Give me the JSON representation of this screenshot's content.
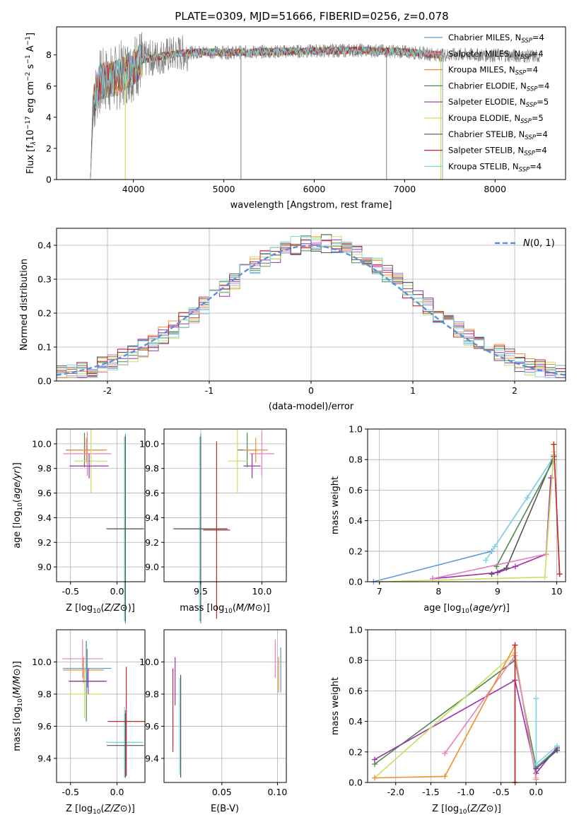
{
  "title": "PLATE=0309, MJD=51666, FIBERID=0256, z=0.078",
  "colors": {
    "Chabrier MILES": "#5b9bd5",
    "Salpeter MILES": "#e87fc0",
    "Kroupa MILES": "#f28e2b",
    "Chabrier ELODIE": "#4e8a4e",
    "Salpeter ELODIE": "#9b2fae",
    "Kroupa ELODIE": "#c8e05c",
    "Chabrier STELIB": "#555555",
    "Salpeter STELIB": "#c0282e",
    "Kroupa STELIB": "#7fd8e0",
    "data": "#808080",
    "normal": "#5b8fd9"
  },
  "chart_data": [
    {
      "id": "spectrum",
      "type": "line",
      "xlabel": "wavelength [Angstrom, rest frame]",
      "ylabel": "Flux [f_λ 10^-17 erg cm^-2 s^-1 A^-1]",
      "xlim": [
        3150,
        8780
      ],
      "ylim": [
        0,
        9.8
      ],
      "xticks": [
        4000,
        5000,
        6000,
        7000,
        8000
      ],
      "yticks": [
        0,
        2,
        4,
        6,
        8
      ],
      "legend": [
        {
          "base": "Chabrier MILES, N",
          "sub": "SSP",
          "tail": "=4",
          "model": "Chabrier MILES"
        },
        {
          "base": "Salpeter MILES, N",
          "sub": "SSP",
          "tail": "=4",
          "model": "Salpeter MILES"
        },
        {
          "base": "Kroupa MILES, N",
          "sub": "SSP",
          "tail": "=4",
          "model": "Kroupa MILES"
        },
        {
          "base": "Chabrier ELODIE, N",
          "sub": "SSP",
          "tail": "=4",
          "model": "Chabrier ELODIE"
        },
        {
          "base": "Salpeter ELODIE, N",
          "sub": "SSP",
          "tail": "=5",
          "model": "Salpeter ELODIE"
        },
        {
          "base": "Kroupa ELODIE, N",
          "sub": "SSP",
          "tail": "=5",
          "model": "Kroupa ELODIE"
        },
        {
          "base": "Chabrier STELIB, N",
          "sub": "SSP",
          "tail": "=4",
          "model": "Chabrier STELIB"
        },
        {
          "base": "Salpeter STELIB, N",
          "sub": "SSP",
          "tail": "=4",
          "model": "Salpeter STELIB"
        },
        {
          "base": "Kroupa STELIB, N",
          "sub": "SSP",
          "tail": "=4",
          "model": "Kroupa STELIB"
        }
      ],
      "continuum": {
        "x": [
          3560,
          3620,
          3700,
          3800,
          3900,
          4000,
          4100,
          4300,
          4500,
          4800,
          5000,
          5500,
          6000,
          6500,
          7000,
          7400,
          7800,
          8200,
          8500
        ],
        "y": [
          4.9,
          6.2,
          6.4,
          6.5,
          6.9,
          7.2,
          7.7,
          7.9,
          8.1,
          8.2,
          8.15,
          8.2,
          8.25,
          8.3,
          8.2,
          8.0,
          8.0,
          7.95,
          7.9
        ]
      },
      "data_xrange": [
        3560,
        8500
      ],
      "model_xrange": [
        3525,
        7420
      ]
    },
    {
      "id": "residuals",
      "type": "bar",
      "xlabel": "(data-model)/error",
      "ylabel": "Normed distribution",
      "xlim": [
        -2.5,
        2.5
      ],
      "ylim": [
        0,
        0.45
      ],
      "xticks": [
        -2,
        -1,
        0,
        1,
        2
      ],
      "yticks": [
        0.0,
        0.1,
        0.2,
        0.3,
        0.4
      ],
      "legend": "N(0,1)",
      "bin_width": 0.1
    },
    {
      "id": "age_vs_Z",
      "type": "scatter",
      "xlabel": "Z [log10(Z/Z⊙)]",
      "ylabel": "age [log10(age/yr)]",
      "xlim": [
        -0.65,
        0.3
      ],
      "ylim": [
        8.88,
        10.12
      ],
      "xticks": [
        -0.5,
        0.0
      ],
      "yticks": [
        9.0,
        9.2,
        9.4,
        9.6,
        9.8,
        10.0
      ],
      "crosses": [
        {
          "model": "Chabrier MILES",
          "x": 0.09,
          "y": 9.31,
          "xerr": 0.17,
          "yerr": 0.77
        },
        {
          "model": "Kroupa STELIB",
          "x": 0.08,
          "y": 9.31,
          "xerr": 0.2,
          "yerr": 0.75
        },
        {
          "model": "Chabrier STELIB",
          "x": 0.09,
          "y": 9.31,
          "xerr": 0.2,
          "yerr": 0.75
        },
        {
          "model": "Chabrier ELODIE",
          "x": -0.35,
          "y": 9.95,
          "xerr": 0.2,
          "yerr": 0.14
        },
        {
          "model": "Salpeter MILES",
          "x": -0.32,
          "y": 9.92,
          "xerr": 0.26,
          "yerr": 0.18
        },
        {
          "model": "Kroupa MILES",
          "x": -0.33,
          "y": 9.95,
          "xerr": 0.22,
          "yerr": 0.1
        },
        {
          "model": "Kroupa ELODIE",
          "x": -0.28,
          "y": 9.86,
          "xerr": 0.18,
          "yerr": 0.26
        },
        {
          "model": "Salpeter ELODIE",
          "x": -0.3,
          "y": 9.82,
          "xerr": 0.21,
          "yerr": 0.1
        }
      ]
    },
    {
      "id": "age_vs_mass",
      "type": "scatter",
      "xlabel": "mass [log10(M/M⊙)]",
      "ylabel": "",
      "xlim": [
        9.2,
        10.2
      ],
      "ylim": [
        8.88,
        10.12
      ],
      "xticks": [
        9.5,
        10.0
      ],
      "yticks": [
        9.0,
        9.2,
        9.4,
        9.6,
        9.8,
        10.0
      ],
      "crosses": [
        {
          "model": "Chabrier MILES",
          "x": 9.5,
          "y": 9.31,
          "xerr": 0.2,
          "yerr": 0.77
        },
        {
          "model": "Kroupa STELIB",
          "x": 9.49,
          "y": 9.31,
          "xerr": 0.22,
          "yerr": 0.75
        },
        {
          "model": "Chabrier STELIB",
          "x": 9.5,
          "y": 9.31,
          "xerr": 0.22,
          "yerr": 0.75
        },
        {
          "model": "Salpeter STELIB",
          "x": 9.63,
          "y": 9.3,
          "xerr": 0.11,
          "yerr": 0.72
        },
        {
          "model": "Chabrier ELODIE",
          "x": 9.88,
          "y": 9.95,
          "xerr": 0.08,
          "yerr": 0.14
        },
        {
          "model": "Salpeter MILES",
          "x": 10.0,
          "y": 9.92,
          "xerr": 0.1,
          "yerr": 0.18
        },
        {
          "model": "Kroupa MILES",
          "x": 9.95,
          "y": 9.95,
          "xerr": 0.1,
          "yerr": 0.1
        },
        {
          "model": "Kroupa ELODIE",
          "x": 9.8,
          "y": 9.86,
          "xerr": 0.08,
          "yerr": 0.26
        },
        {
          "model": "Salpeter ELODIE",
          "x": 9.92,
          "y": 9.82,
          "xerr": 0.07,
          "yerr": 0.1
        }
      ]
    },
    {
      "id": "massweight_vs_age",
      "type": "line",
      "xlabel": "age [log10(age/yr)]",
      "ylabel": "mass weight",
      "xlim": [
        6.8,
        10.15
      ],
      "ylim": [
        0,
        1.0
      ],
      "xticks": [
        7,
        8,
        9,
        10
      ],
      "yticks": [
        0.0,
        0.2,
        0.4,
        0.6,
        0.8,
        1.0
      ],
      "series": [
        {
          "model": "Chabrier MILES",
          "x": [
            6.9,
            8.9,
            9.5,
            9.95
          ],
          "y": [
            0.0,
            0.2,
            0.55,
            0.82
          ]
        },
        {
          "model": "Kroupa STELIB",
          "x": [
            8.8,
            8.95,
            9.5,
            9.95
          ],
          "y": [
            0.14,
            0.23,
            0.55,
            0.82
          ]
        },
        {
          "model": "Chabrier STELIB",
          "x": [
            8.9,
            9.15,
            9.95
          ],
          "y": [
            0.05,
            0.09,
            0.82
          ]
        },
        {
          "model": "Chabrier ELODIE",
          "x": [
            8.98,
            9.95
          ],
          "y": [
            0.1,
            0.8
          ]
        },
        {
          "model": "Salpeter ELODIE",
          "x": [
            7.9,
            9.0,
            9.3,
            9.82,
            9.9
          ],
          "y": [
            0.02,
            0.06,
            0.1,
            0.18,
            0.68
          ]
        },
        {
          "model": "Salpeter MILES",
          "x": [
            7.9,
            9.82,
            9.95
          ],
          "y": [
            0.02,
            0.18,
            0.83
          ]
        },
        {
          "model": "Kroupa ELODIE",
          "x": [
            7.0,
            9.8,
            9.95
          ],
          "y": [
            0.0,
            0.03,
            0.85
          ]
        },
        {
          "model": "Kroupa MILES",
          "x": [
            9.95,
            10.05
          ],
          "y": [
            0.9,
            0.05
          ]
        },
        {
          "model": "Salpeter STELIB",
          "x": [
            9.95,
            10.05
          ],
          "y": [
            0.9,
            0.05
          ]
        }
      ]
    },
    {
      "id": "mass_vs_Z",
      "type": "scatter",
      "xlabel": "Z [log10(Z/Z⊙)]",
      "ylabel": "mass [log10(M/M⊙)]",
      "xlim": [
        -0.65,
        0.3
      ],
      "ylim": [
        9.25,
        10.2
      ],
      "xticks": [
        -0.5,
        0.0
      ],
      "yticks": [
        9.4,
        9.6,
        9.8,
        10.0
      ],
      "crosses": [
        {
          "model": "Chabrier MILES",
          "x": 0.09,
          "y": 9.5,
          "xerr": 0.17,
          "yerr": 0.2
        },
        {
          "model": "Kroupa STELIB",
          "x": 0.08,
          "y": 9.5,
          "xerr": 0.2,
          "yerr": 0.22
        },
        {
          "model": "Chabrier STELIB",
          "x": 0.09,
          "y": 9.48,
          "xerr": 0.2,
          "yerr": 0.2
        },
        {
          "model": "Salpeter STELIB",
          "x": 0.1,
          "y": 9.63,
          "xerr": 0.2,
          "yerr": 0.34
        },
        {
          "model": "Chabrier ELODIE",
          "x": -0.33,
          "y": 9.88,
          "xerr": 0.19,
          "yerr": 0.25
        },
        {
          "model": "Salpeter MILES",
          "x": -0.37,
          "y": 10.02,
          "xerr": 0.22,
          "yerr": 0.12
        },
        {
          "model": "Kroupa MILES",
          "x": -0.36,
          "y": 9.95,
          "xerr": 0.22,
          "yerr": 0.08
        },
        {
          "model": "Chabrier MILES",
          "x": -0.32,
          "y": 9.96,
          "xerr": 0.26,
          "yerr": 0.12
        },
        {
          "model": "Kroupa ELODIE",
          "x": -0.35,
          "y": 9.8,
          "xerr": 0.18,
          "yerr": 0.15
        },
        {
          "model": "Salpeter ELODIE",
          "x": -0.31,
          "y": 9.88,
          "xerr": 0.2,
          "yerr": 0.08
        }
      ]
    },
    {
      "id": "mass_vs_ebv",
      "type": "scatter",
      "xlabel": "E(B-V)",
      "ylabel": "",
      "xlim": [
        -0.002,
        0.108
      ],
      "ylim": [
        9.25,
        10.2
      ],
      "xticks": [
        0.05,
        0.1
      ],
      "yticks": [
        9.4,
        9.6,
        9.8,
        10.0
      ],
      "crosses": [
        {
          "model": "Salpeter STELIB",
          "x": 0.006,
          "y": 9.7,
          "xerr": 0.0,
          "yerr": 0.26
        },
        {
          "model": "Salpeter ELODIE",
          "x": 0.008,
          "y": 9.88,
          "xerr": 0.0,
          "yerr": 0.15
        },
        {
          "model": "Kroupa STELIB",
          "x": 0.012,
          "y": 9.6,
          "xerr": 0.0,
          "yerr": 0.3
        },
        {
          "model": "Chabrier STELIB",
          "x": 0.013,
          "y": 9.6,
          "xerr": 0.0,
          "yerr": 0.32
        },
        {
          "model": "Salpeter MILES",
          "x": 0.098,
          "y": 10.02,
          "xerr": 0.0,
          "yerr": 0.12
        },
        {
          "model": "Kroupa MILES",
          "x": 0.101,
          "y": 9.92,
          "xerr": 0.0,
          "yerr": 0.11
        },
        {
          "model": "Chabrier MILES",
          "x": 0.103,
          "y": 9.95,
          "xerr": 0.0,
          "yerr": 0.14
        }
      ]
    },
    {
      "id": "massweight_vs_Z",
      "type": "line",
      "xlabel": "Z [log10(Z/Z⊙)]",
      "ylabel": "mass weight",
      "xlim": [
        -2.4,
        0.42
      ],
      "ylim": [
        0,
        1.0
      ],
      "xticks": [
        -2.0,
        -1.5,
        -1.0,
        -0.5,
        0.0
      ],
      "yticks": [
        0.0,
        0.2,
        0.4,
        0.6,
        0.8,
        1.0
      ],
      "series": [
        {
          "model": "Chabrier ELODIE",
          "x": [
            -2.3,
            -0.3,
            0.0,
            0.3
          ],
          "y": [
            0.12,
            0.8,
            0.1,
            0.22
          ]
        },
        {
          "model": "Salpeter ELODIE",
          "x": [
            -2.3,
            -0.3,
            0.0,
            0.3
          ],
          "y": [
            0.15,
            0.67,
            0.06,
            0.23
          ]
        },
        {
          "model": "Kroupa ELODIE",
          "x": [
            -2.3,
            -0.3,
            0.0
          ],
          "y": [
            0.03,
            0.85,
            0.03
          ]
        },
        {
          "model": "Salpeter MILES",
          "x": [
            -1.3,
            -0.3,
            0.0
          ],
          "y": [
            0.19,
            0.83,
            0.02
          ]
        },
        {
          "model": "Kroupa MILES",
          "x": [
            -2.3,
            -1.3,
            -0.3,
            -0.3
          ],
          "y": [
            0.03,
            0.04,
            0.9,
            0.0
          ]
        },
        {
          "model": "Salpeter STELIB",
          "x": [
            -0.3,
            -0.3
          ],
          "y": [
            0.9,
            0.0
          ]
        },
        {
          "model": "Chabrier MILES",
          "x": [
            0.0,
            0.0,
            0.3
          ],
          "y": [
            0.55,
            0.1,
            0.21
          ]
        },
        {
          "model": "Kroupa STELIB",
          "x": [
            0.0,
            0.0,
            0.3
          ],
          "y": [
            0.55,
            0.12,
            0.24
          ]
        },
        {
          "model": "Chabrier STELIB",
          "x": [
            0.0,
            0.3
          ],
          "y": [
            0.09,
            0.21
          ]
        }
      ]
    }
  ]
}
